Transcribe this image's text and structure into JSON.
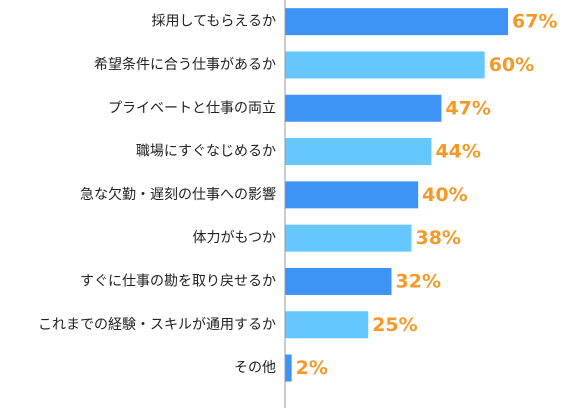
{
  "chart_data": {
    "type": "bar",
    "orientation": "horizontal",
    "title": "",
    "xlabel": "",
    "ylabel": "",
    "xlim": [
      0,
      67
    ],
    "grid": false,
    "legend": "none",
    "categories": [
      "採用してもらえるか",
      "希望条件に合う仕事があるか",
      "プライベートと仕事の両立",
      "職場にすぐなじめるか",
      "急な欠勤・遅刻の仕事への影響",
      "体力がもつか",
      "すぐに仕事の勘を取り戻せるか",
      "これまでの経験・スキルが通用するか",
      "その他"
    ],
    "values": [
      67,
      60,
      47,
      44,
      40,
      38,
      32,
      25,
      2
    ],
    "value_labels": [
      "67%",
      "60%",
      "47%",
      "44%",
      "40%",
      "38%",
      "32%",
      "25%",
      "2%"
    ],
    "colors": {
      "bar_dark": "#3d94f5",
      "bar_light": "#66c7ff",
      "value_label": "#f39a2b",
      "axis": "#9a9a9a",
      "category_text": "#222222"
    }
  }
}
